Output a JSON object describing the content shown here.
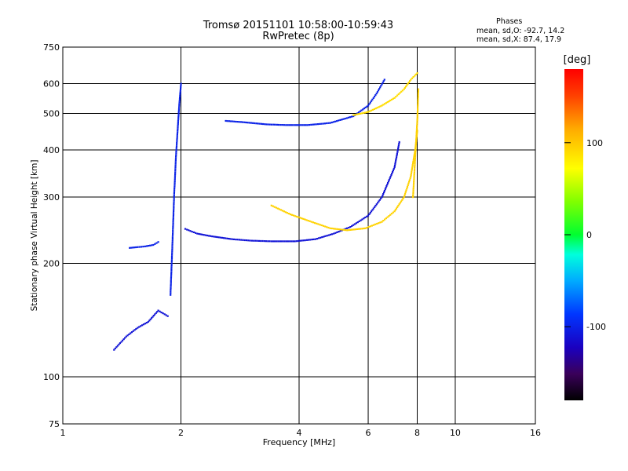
{
  "header": {
    "title": "Tromsø 20151101 10:58:00-10:59:43",
    "subtitle": "RwPretec (8p)"
  },
  "stats": {
    "heading": "Phases",
    "line_o": "mean, sd,O: -92.7, 14.2",
    "line_x": "mean, sd,X:  87.4, 17.9"
  },
  "chart_data": {
    "type": "scatter",
    "xlabel": "Frequency [MHz]",
    "ylabel": "Stationary phase Virtual Height [km]",
    "xscale": "log",
    "yscale": "log",
    "xlim": [
      1,
      16
    ],
    "ylim": [
      75,
      750
    ],
    "xticks": [
      "1",
      "2",
      "4",
      "6",
      "8",
      "10",
      "16"
    ],
    "xtick_values": [
      1,
      2,
      4,
      6,
      8,
      10,
      16
    ],
    "yticks": [
      "75",
      "100",
      "200",
      "300",
      "400",
      "500",
      "600",
      "750"
    ],
    "ytick_values": [
      75,
      100,
      200,
      300,
      400,
      500,
      600,
      750
    ],
    "grid": true,
    "colorbar": {
      "label": "[deg]",
      "range": [
        -180,
        180
      ],
      "ticks": [
        "100",
        "0",
        "-100"
      ],
      "tick_values": [
        100,
        0,
        -100
      ]
    },
    "series": [
      {
        "mode": "O",
        "segments": [
          {
            "x": [
              1.48,
              1.55,
              1.62,
              1.7,
              1.75
            ],
            "y": [
              220,
              221,
              222,
              224,
              228
            ],
            "phase": -100
          },
          {
            "x": [
              1.88,
              1.9,
              1.92,
              1.94,
              1.96,
              1.98,
              2.0
            ],
            "y": [
              165,
              220,
              300,
              380,
              450,
              530,
              600
            ],
            "phase": -100
          },
          {
            "x": [
              2.05,
              2.2,
              2.4,
              2.7,
              3.0,
              3.4,
              3.9,
              4.4,
              4.9,
              5.4,
              6.0,
              6.5,
              7.0,
              7.2
            ],
            "y": [
              247,
              240,
              236,
              232,
              230,
              229,
              229,
              232,
              240,
              250,
              268,
              300,
              360,
              420
            ],
            "phase": -110
          },
          {
            "x": [
              2.6,
              2.9,
              3.3,
              3.7,
              4.2,
              4.8,
              5.5,
              6.0,
              6.3,
              6.6
            ],
            "y": [
              478,
              474,
              468,
              466,
              466,
              472,
              492,
              525,
              565,
              615
            ],
            "phase": -100
          },
          {
            "x": [
              1.35,
              1.45,
              1.55,
              1.65,
              1.75,
              1.85
            ],
            "y": [
              118,
              128,
              135,
              140,
              150,
              145
            ],
            "phase": -110
          }
        ]
      },
      {
        "mode": "X",
        "segments": [
          {
            "x": [
              3.4,
              3.8,
              4.3,
              4.8,
              5.3,
              5.9,
              6.5,
              7.0,
              7.4,
              7.7,
              7.9,
              8.0
            ],
            "y": [
              285,
              270,
              258,
              248,
              245,
              248,
              258,
              275,
              300,
              340,
              400,
              450
            ],
            "phase": 95
          },
          {
            "x": [
              5.5,
              6.0,
              6.5,
              7.0,
              7.4,
              7.7,
              8.0
            ],
            "y": [
              495,
              505,
              525,
              550,
              580,
              615,
              640
            ],
            "phase": 90
          },
          {
            "x": [
              7.8,
              7.9,
              8.0,
              8.05
            ],
            "y": [
              300,
              380,
              480,
              580
            ],
            "phase": 95
          }
        ]
      }
    ]
  }
}
